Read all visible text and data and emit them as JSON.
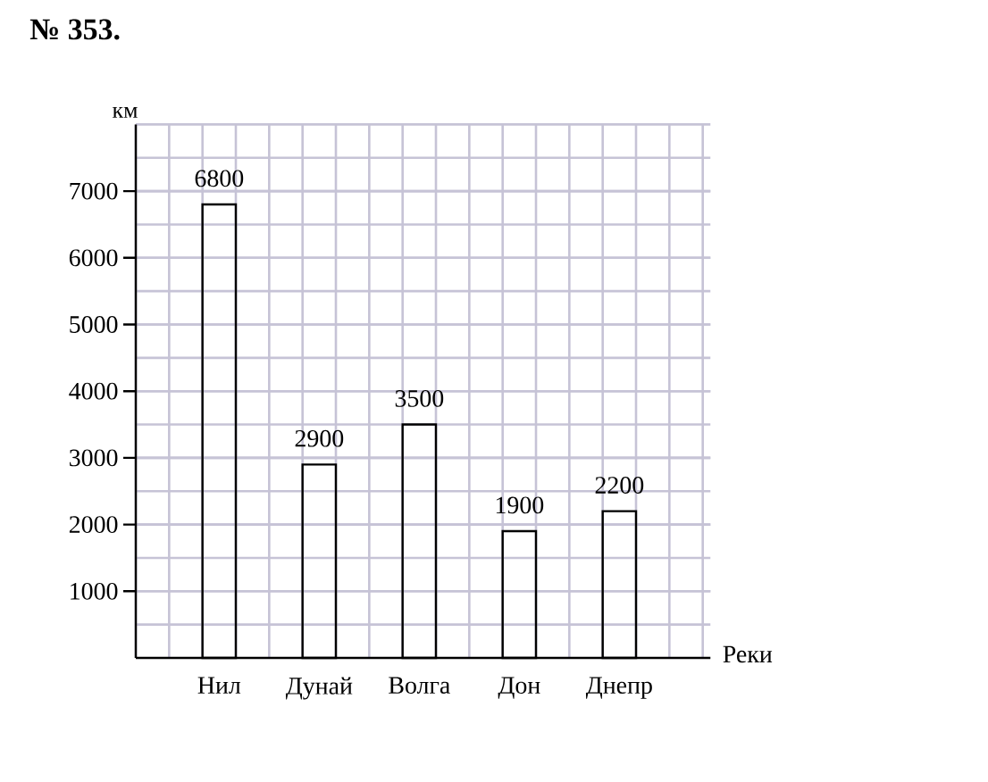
{
  "chart_data": {
    "type": "bar",
    "title": "№ 353.",
    "xlabel": "Реки",
    "ylabel": "км",
    "categories": [
      "Нил",
      "Дунай",
      "Волга",
      "Дон",
      "Днепр"
    ],
    "values": [
      6800,
      2900,
      3500,
      1900,
      2200
    ],
    "color": "#000000",
    "ylim": [
      0,
      8000
    ],
    "yticks": [
      1000,
      2000,
      3000,
      4000,
      5000,
      6000,
      7000
    ],
    "grid": true,
    "data_labels": true
  }
}
